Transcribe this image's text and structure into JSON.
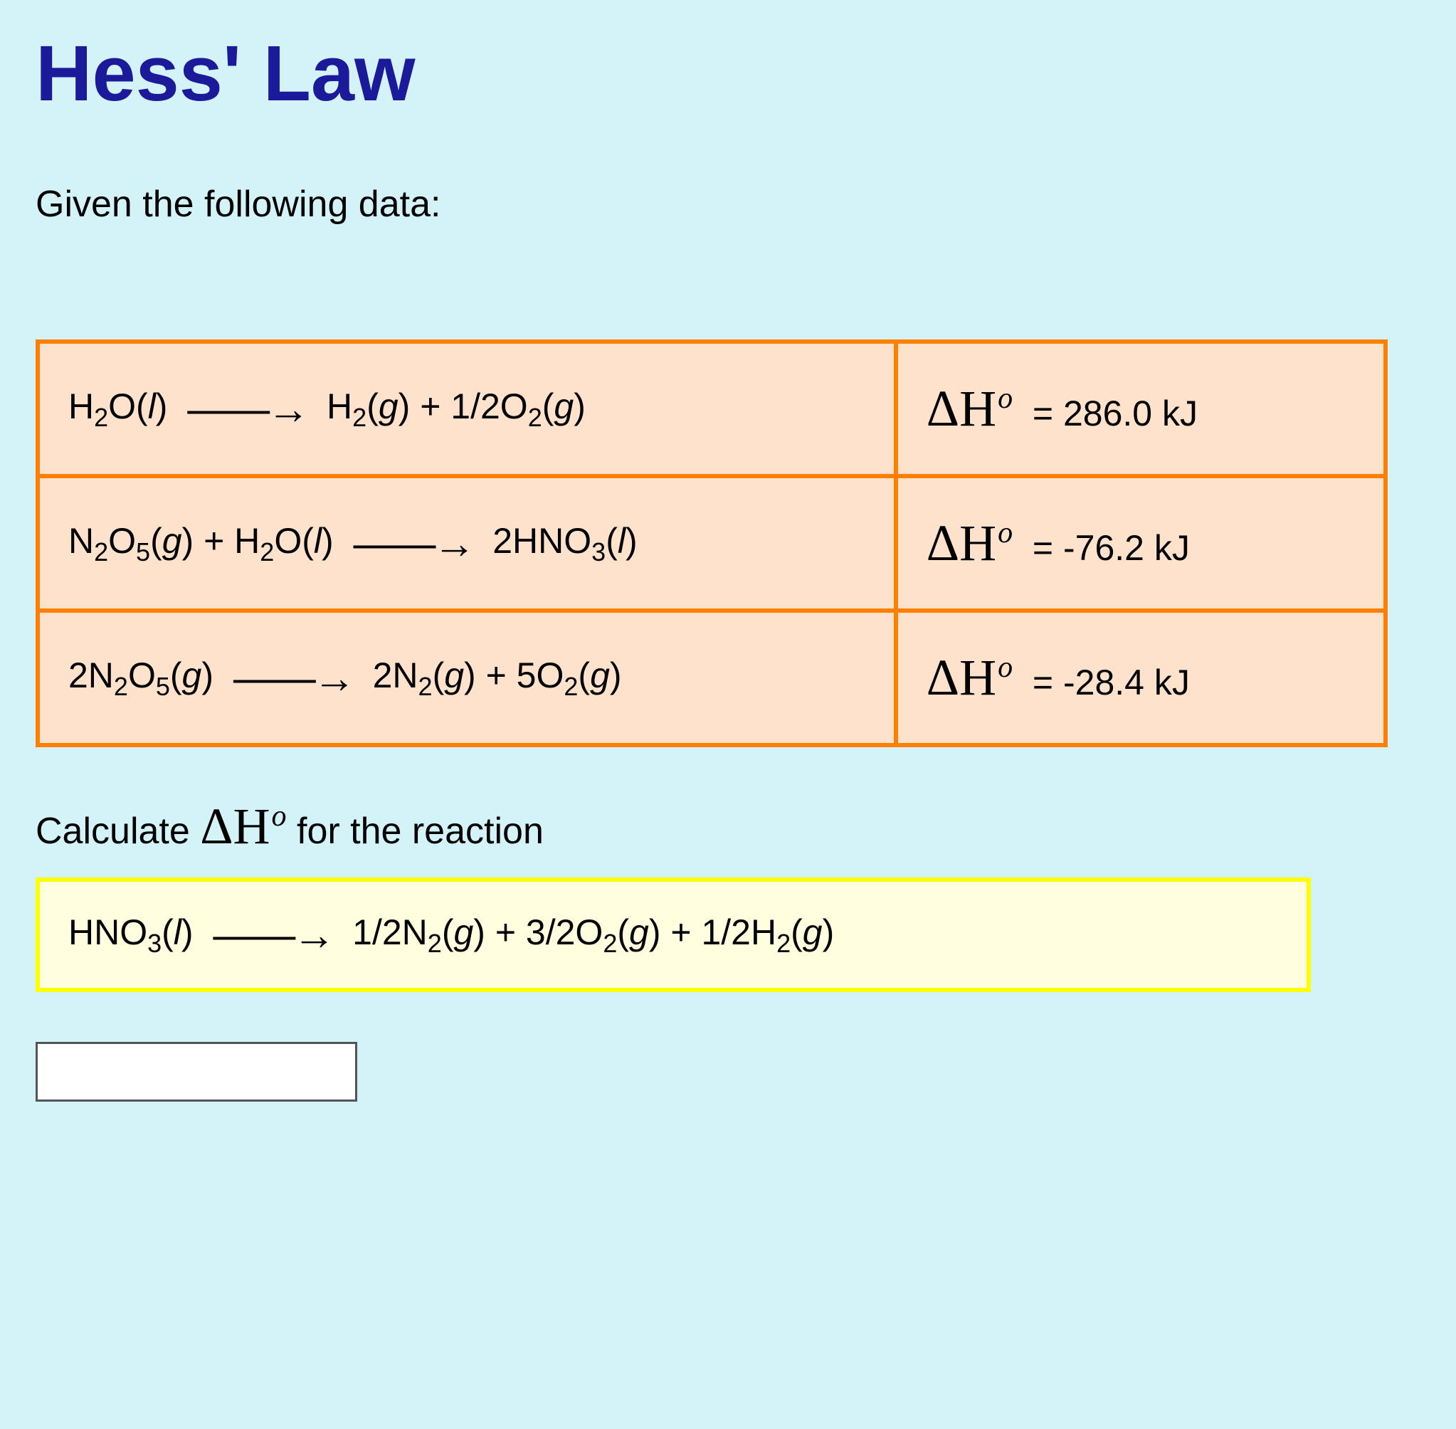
{
  "title": "Hess' Law",
  "intro": "Given the following data:",
  "deltaH_symbol": "ΔH",
  "table": {
    "border_color": "#ff7f00",
    "cell_bg": "#ffe2cc",
    "rows": [
      {
        "reactants": [
          {
            "f": "H",
            "s": "2",
            "t": "O(",
            "i": "l",
            "c": ")"
          }
        ],
        "products": [
          {
            "f": "H",
            "s": "2",
            "t": "(",
            "i": "g",
            "c": ") + 1/2O",
            "s2": "2",
            "t2": "(",
            "i2": "g",
            "c2": ")"
          }
        ],
        "dh_value": "= 286.0 kJ",
        "rxn_plain": "H2O(l) → H2(g) + 1/2O2(g)"
      },
      {
        "reactants": [
          {
            "f": "N",
            "s": "2",
            "t": "O",
            "s2": "5",
            "t2": "(",
            "i": "g",
            "c": ") + H",
            "s3": "2",
            "t3": "O(",
            "i2": "l",
            "c2": ")"
          }
        ],
        "products": [
          {
            "f": "2HNO",
            "s": "3",
            "t": "(",
            "i": "l",
            "c": ")"
          }
        ],
        "dh_value": "= -76.2 kJ",
        "rxn_plain": "N2O5(g) + H2O(l) → 2HNO3(l)"
      },
      {
        "reactants": [
          {
            "f": "2N",
            "s": "2",
            "t": "O",
            "s2": "5",
            "t2": "(",
            "i": "g",
            "c": ")"
          }
        ],
        "products": [
          {
            "f": "2N",
            "s": "2",
            "t": "(",
            "i": "g",
            "c": ") + 5O",
            "s2": "2",
            "t2": "(",
            "i2": "g",
            "c2": ")"
          }
        ],
        "dh_value": "= -28.4 kJ",
        "rxn_plain": "2N2O5(g) → 2N2(g) + 5O2(g)"
      }
    ]
  },
  "calc_prefix": "Calculate ",
  "calc_suffix": " for the reaction",
  "target": {
    "box_border": "#ffff00",
    "box_bg": "#ffffe0",
    "reactants_plain": "HNO3(l)",
    "products_plain": "1/2N2(g) + 3/2O2(g) + 1/2H2(g)"
  },
  "colors": {
    "page_bg": "#d4f3f8",
    "title_color": "#1a1a9a",
    "text_color": "#000000"
  },
  "answer_input_value": ""
}
